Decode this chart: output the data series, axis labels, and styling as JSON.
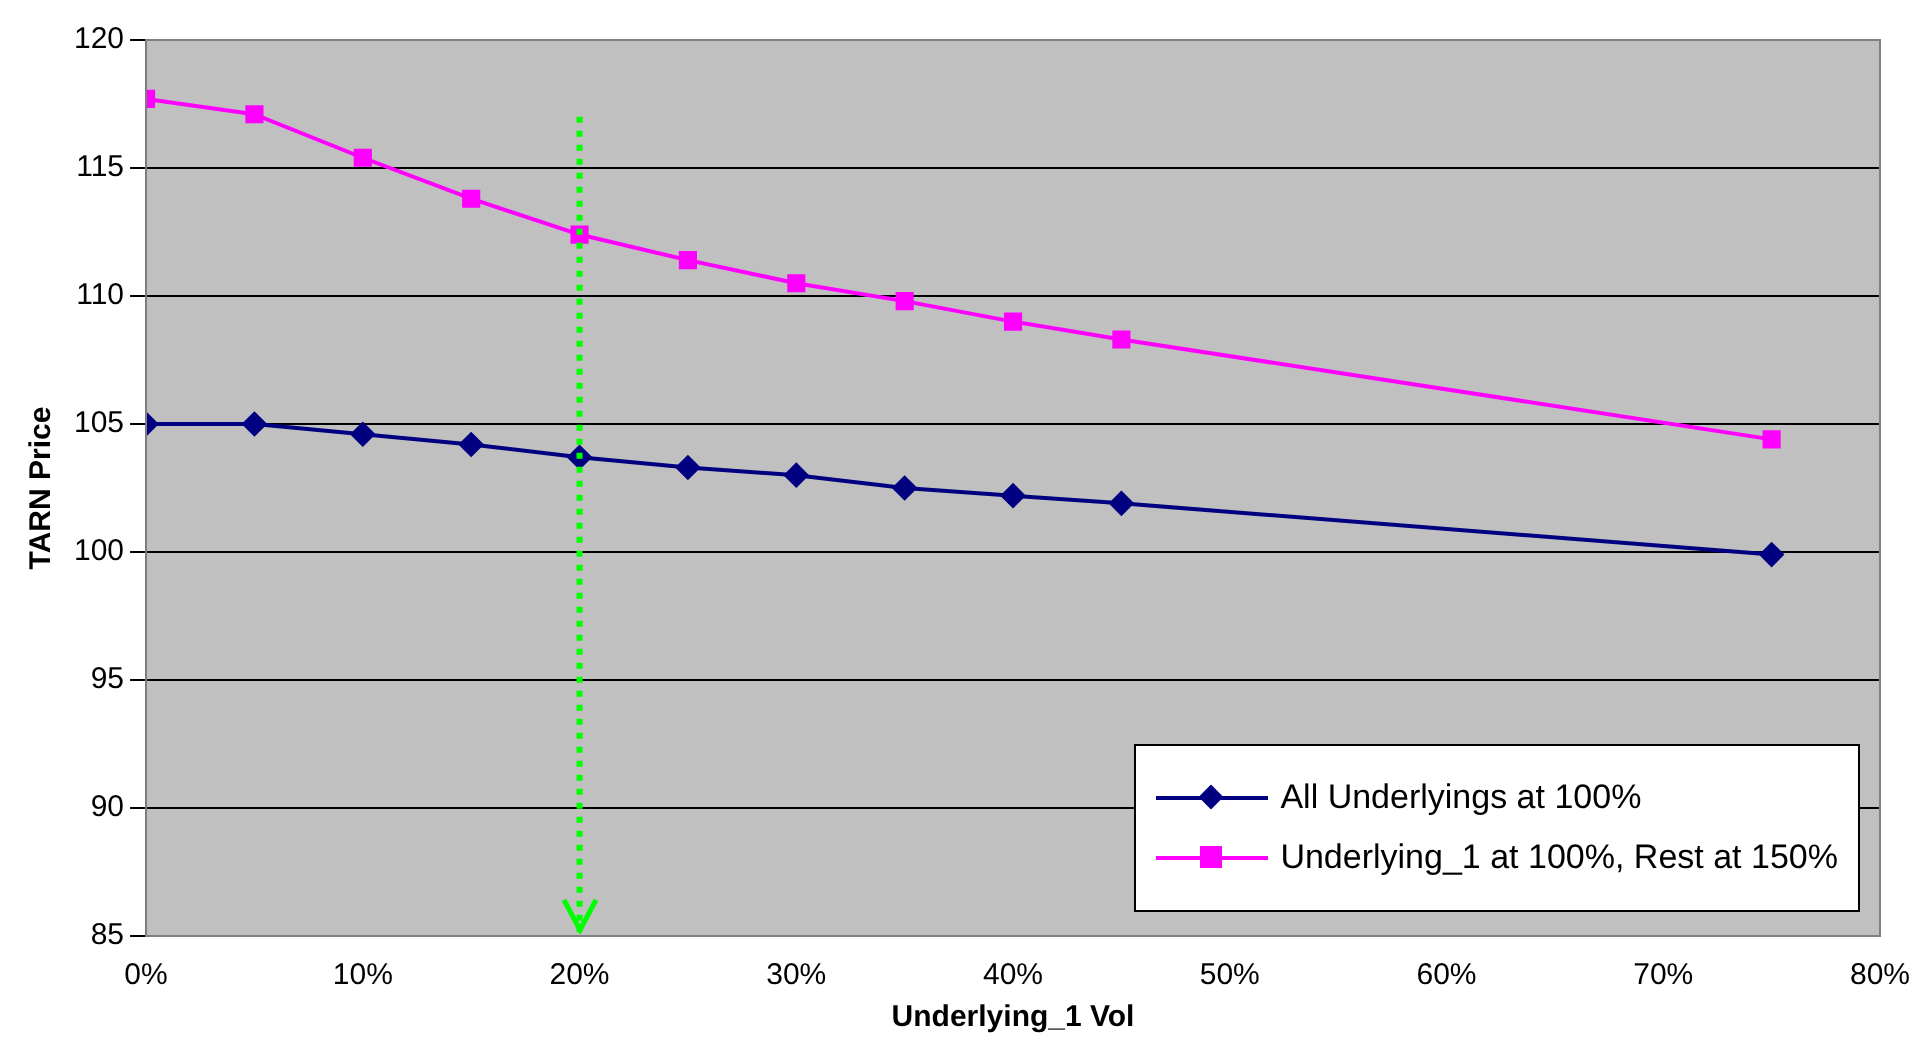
{
  "chart_data": {
    "type": "line",
    "xlabel": "Underlying_1 Vol",
    "ylabel": "TARN Price",
    "x": [
      0,
      5,
      10,
      15,
      20,
      25,
      30,
      35,
      40,
      45,
      75
    ],
    "series": [
      {
        "name": "All Underlyings at 100%",
        "color": "#000080",
        "marker": "diamond",
        "values": [
          105,
          105,
          104.6,
          104.2,
          103.7,
          103.3,
          103,
          102.5,
          102.2,
          101.9,
          99.9
        ]
      },
      {
        "name": "Underlying_1 at 100%, Rest at 150%",
        "color": "#ff00ff",
        "marker": "square",
        "values": [
          117.7,
          117.1,
          115.4,
          113.8,
          112.4,
          111.4,
          110.5,
          109.8,
          109,
          108.3,
          104.4
        ]
      }
    ],
    "xlim": [
      0,
      80
    ],
    "xticks": [
      {
        "value": 0,
        "label": "0%"
      },
      {
        "value": 10,
        "label": "10%"
      },
      {
        "value": 20,
        "label": "20%"
      },
      {
        "value": 30,
        "label": "30%"
      },
      {
        "value": 40,
        "label": "40%"
      },
      {
        "value": 50,
        "label": "50%"
      },
      {
        "value": 60,
        "label": "60%"
      },
      {
        "value": 70,
        "label": "70%"
      },
      {
        "value": 80,
        "label": "80%"
      }
    ],
    "ylim": [
      85,
      120
    ],
    "yticks": [
      85,
      90,
      95,
      100,
      105,
      110,
      115,
      120
    ],
    "ref_lines": [
      {
        "axis": "x",
        "value": 20,
        "color": "#00ff00",
        "line_style": "dotted"
      }
    ],
    "grid": "y",
    "legend": "bottom right"
  }
}
